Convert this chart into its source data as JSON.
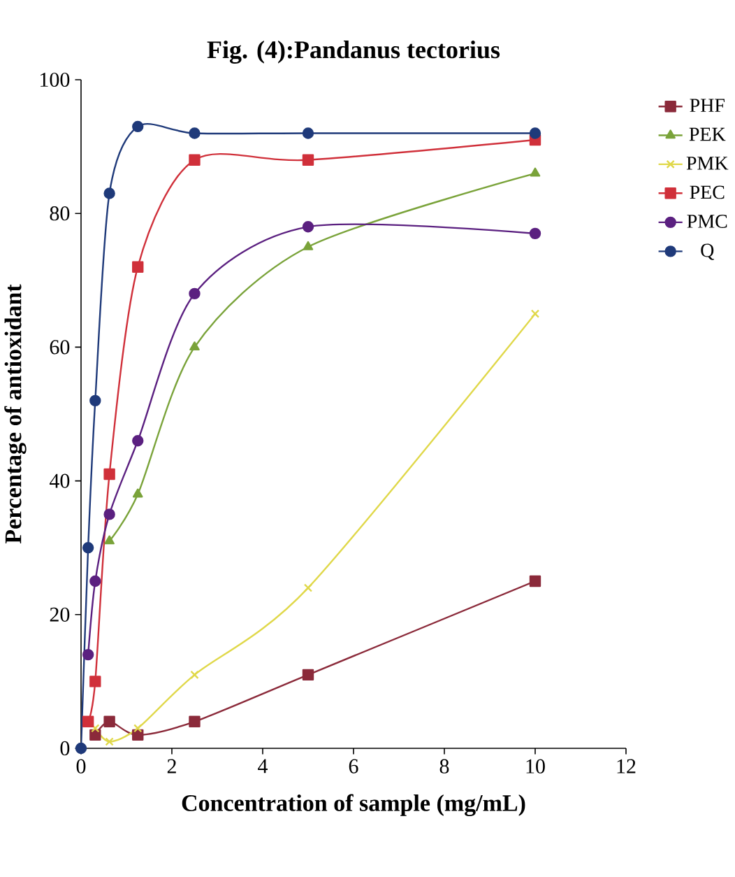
{
  "chart_data": {
    "type": "line",
    "title": "Fig. (4):Pandanus tectorius",
    "xlabel": "Concentration of sample (mg/mL)",
    "ylabel": "Percentage of antioxidant",
    "xlim": [
      0,
      12
    ],
    "xticks": [
      0,
      2,
      4,
      6,
      8,
      10,
      12
    ],
    "ylim": [
      0,
      100
    ],
    "yticks": [
      0,
      20,
      40,
      60,
      80,
      100
    ],
    "grid": false,
    "legend": "right",
    "series": [
      {
        "name": "PHF",
        "color": "#8b2a3a",
        "marker": "square",
        "x": [
          0.3125,
          0.625,
          1.25,
          2.5,
          5,
          10
        ],
        "values": [
          2,
          4,
          2,
          4,
          11,
          25
        ]
      },
      {
        "name": "PEK",
        "color": "#7aa33a",
        "marker": "triangle",
        "x": [
          0.625,
          1.25,
          2.5,
          5,
          10
        ],
        "values": [
          31,
          38,
          60,
          75,
          86
        ]
      },
      {
        "name": "PMK",
        "color": "#e0d84a",
        "marker": "cross",
        "x": [
          0.3125,
          0.625,
          1.25,
          2.5,
          5,
          10
        ],
        "values": [
          3,
          1,
          3,
          11,
          24,
          65
        ]
      },
      {
        "name": "PEC",
        "color": "#d0303a",
        "marker": "square",
        "x": [
          0.156,
          0.3125,
          0.625,
          1.25,
          2.5,
          5,
          10
        ],
        "values": [
          4,
          10,
          41,
          72,
          88,
          88,
          91
        ]
      },
      {
        "name": "PMC",
        "color": "#5b2080",
        "marker": "circle",
        "x": [
          0.156,
          0.3125,
          0.625,
          1.25,
          2.5,
          5,
          10
        ],
        "values": [
          14,
          25,
          35,
          46,
          68,
          78,
          77
        ]
      },
      {
        "name": "Q",
        "color": "#1f3a7a",
        "marker": "circle",
        "x": [
          0,
          0.156,
          0.3125,
          0.625,
          1.25,
          2.5,
          5,
          10
        ],
        "values": [
          0,
          30,
          52,
          83,
          93,
          92,
          92,
          92
        ]
      }
    ]
  }
}
